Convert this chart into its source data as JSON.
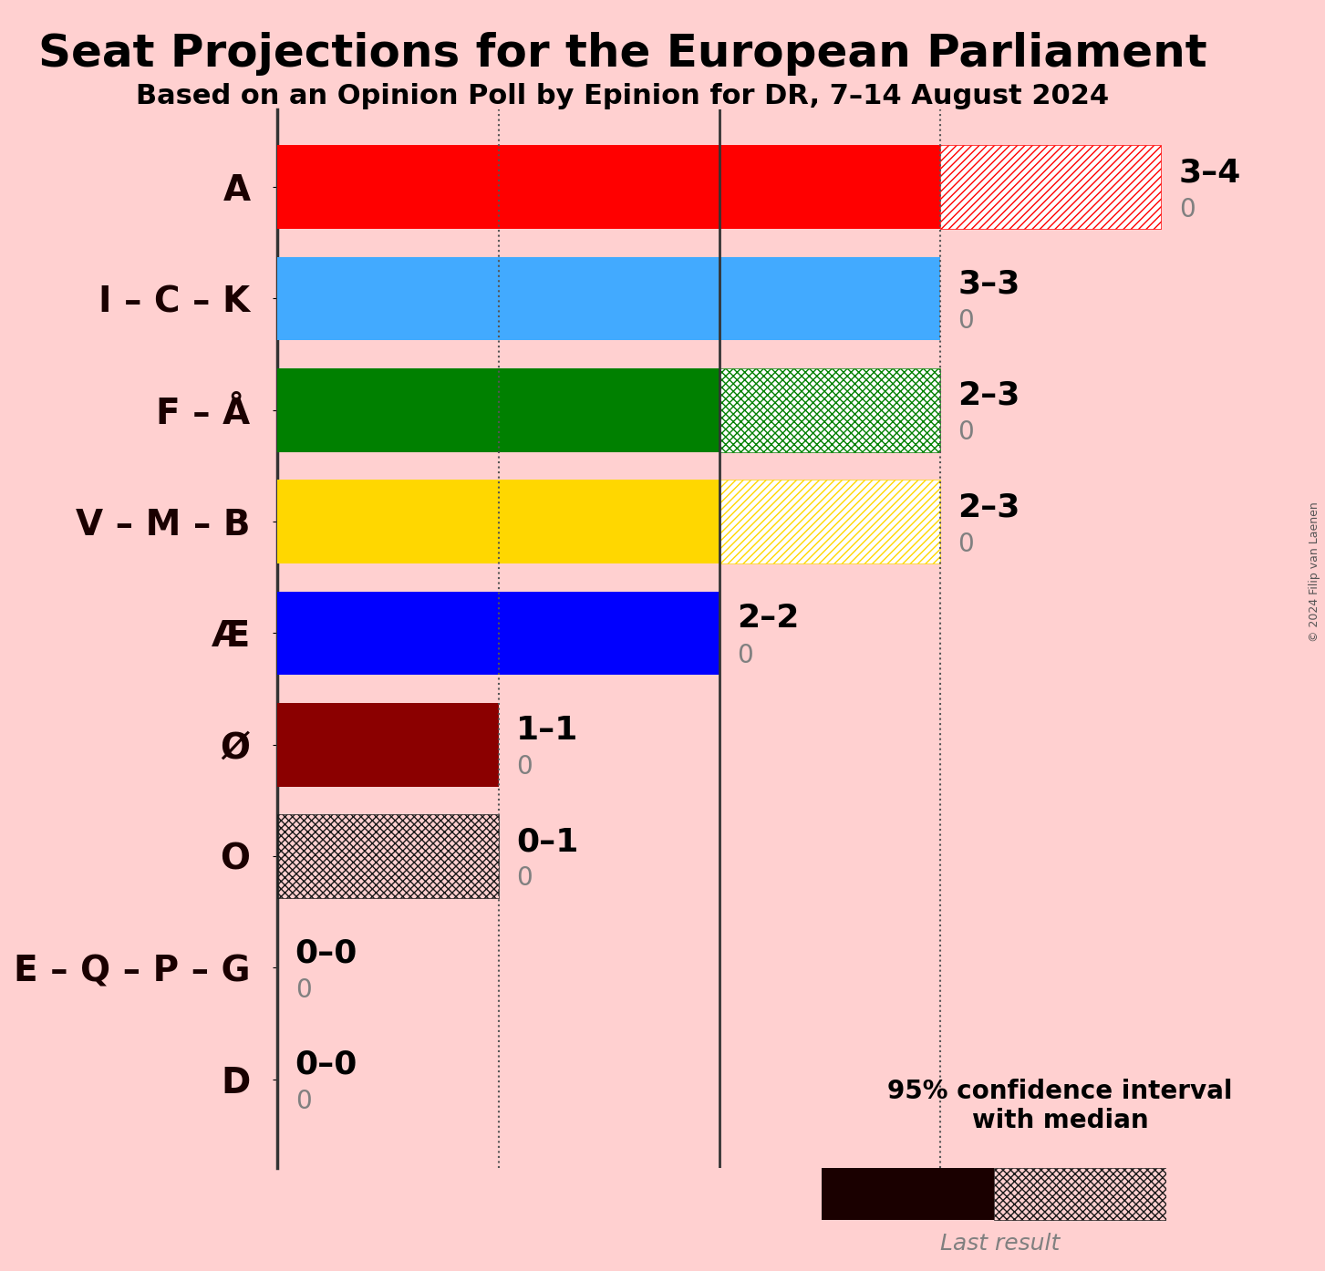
{
  "title": "Seat Projections for the European Parliament",
  "subtitle": "Based on an Opinion Poll by Epinion for DR, 7–14 August 2024",
  "copyright": "© 2024 Filip van Laenen",
  "background_color": "#FFD0D0",
  "parties": [
    "A",
    "I – C – K",
    "F – Å",
    "V – M – B",
    "Æ",
    "Ø",
    "O",
    "E – Q – P – G",
    "D"
  ],
  "median_low": [
    3,
    3,
    2,
    2,
    2,
    1,
    0,
    0,
    0
  ],
  "median_high": [
    4,
    3,
    3,
    3,
    2,
    1,
    1,
    0,
    0
  ],
  "last_result": [
    0,
    0,
    0,
    0,
    0,
    0,
    0,
    0,
    0
  ],
  "bar_colors": [
    "#FF0000",
    "#42AAFF",
    "#008000",
    "#FFD700",
    "#0000FF",
    "#8B0000",
    "#1a1a1a",
    null,
    null
  ],
  "hatch_styles": [
    "////",
    null,
    "xxxx",
    "////",
    null,
    null,
    "xxxx",
    null,
    null
  ],
  "label_texts": [
    "3–4",
    "3–3",
    "2–3",
    "2–3",
    "2–2",
    "1–1",
    "0–1",
    "0–0",
    "0–0"
  ],
  "xlim_max": 4.5,
  "dotted_lines": [
    1,
    3
  ],
  "solid_line": 2,
  "bar_height": 0.75,
  "fig_width": 14.53,
  "fig_height": 13.94,
  "axis_color": "#1a0000",
  "label_fontsize": 26,
  "title_fontsize": 36,
  "subtitle_fontsize": 22,
  "party_fontsize": 28,
  "legend_fontsize": 20,
  "legend_text": "95% confidence interval\nwith median",
  "last_result_text": "Last result"
}
